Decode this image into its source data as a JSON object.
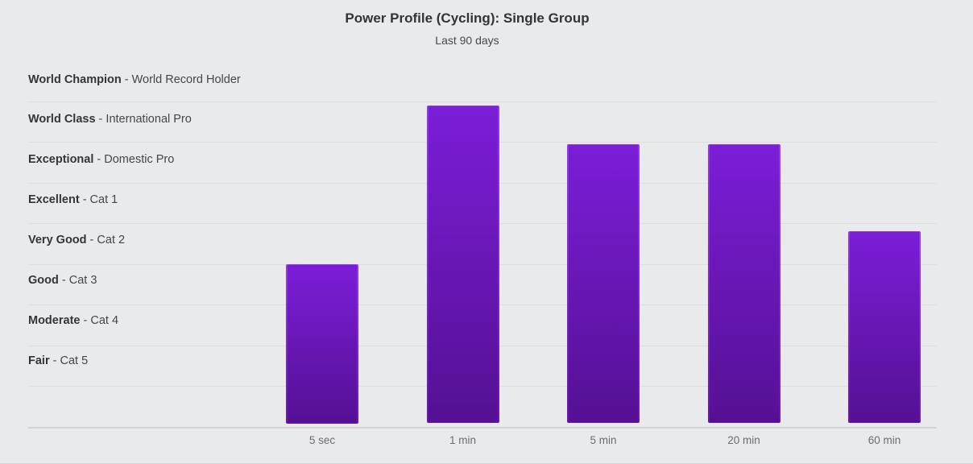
{
  "chart_data": {
    "type": "bar",
    "title": "Power Profile (Cycling): Single Group",
    "subtitle": "Last 90 days",
    "categories": [
      "5 sec",
      "1 min",
      "5 min",
      "20 min",
      "60 min"
    ],
    "values": [
      4.0,
      7.9,
      6.95,
      6.95,
      4.8
    ],
    "value_scale": "rider-class bands above chart baseline; each horizontal band = 1 unit, 9 bands total (bottom band unlabeled)",
    "bands_top_to_bottom": [
      {
        "label": "World Champion",
        "desc": "World Record Holder"
      },
      {
        "label": "World Class",
        "desc": "International Pro"
      },
      {
        "label": "Exceptional",
        "desc": "Domestic Pro"
      },
      {
        "label": "Excellent",
        "desc": "Cat 1"
      },
      {
        "label": "Very Good",
        "desc": "Cat 2"
      },
      {
        "label": "Good",
        "desc": "Cat 3"
      },
      {
        "label": "Moderate",
        "desc": "Cat 4"
      },
      {
        "label": "Fair",
        "desc": "Cat 5"
      }
    ],
    "separator": " - ",
    "grid": true,
    "legend": false,
    "xlabel": "",
    "ylabel": "",
    "colors": {
      "background": "#e9eaec",
      "gridline": "#dddee1",
      "axis_line": "#d3d4d8",
      "bar_gradient_top": "#7b1ed7",
      "bar_gradient_bottom": "#551093",
      "bar_edge_highlight": "#9338ee",
      "title_text": "#333436",
      "band_text": "#454648",
      "tick_text": "#6b6d71"
    }
  }
}
